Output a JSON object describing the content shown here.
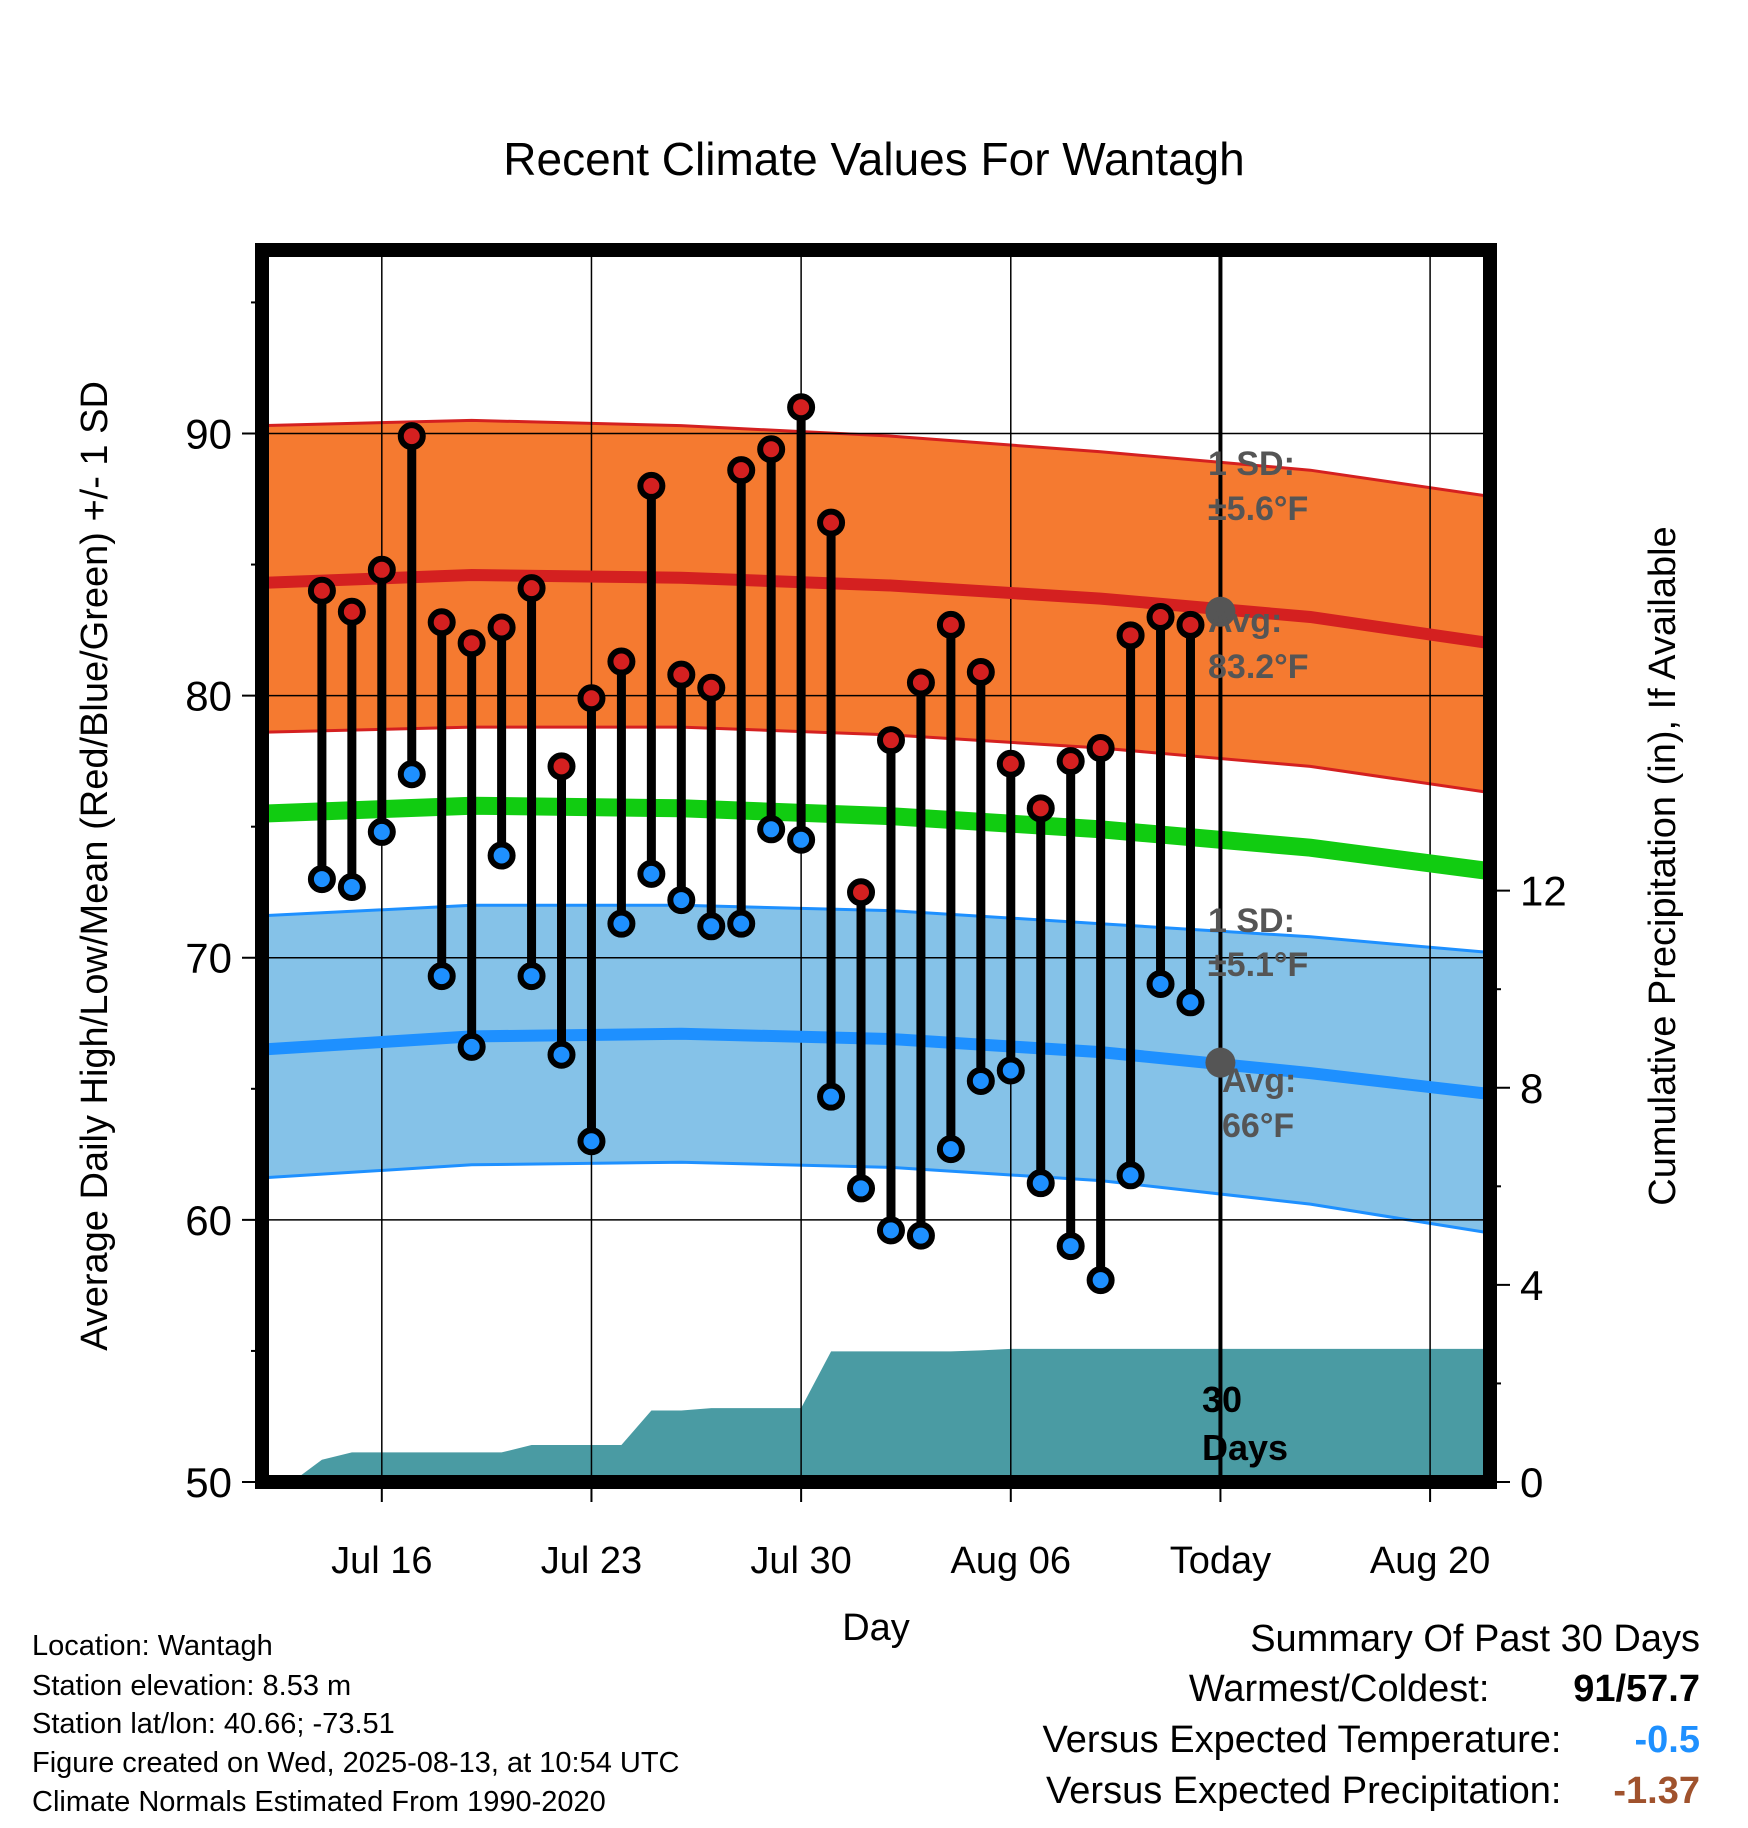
{
  "title": "Recent Climate Values For Wantagh",
  "chart_data": {
    "type": "line",
    "title": "Recent Climate Values For Wantagh",
    "xlabel": "Day",
    "ylabel": "Average Daily High/Low/Mean (Red/Blue/Green) +/- 1 SD",
    "y2label": "Cumulative Precipitation (in), If Available",
    "ylim": [
      50,
      97
    ],
    "y2lim": [
      0,
      25
    ],
    "xlim": [
      "2025-07-12",
      "2025-08-22"
    ],
    "yticks": [
      50,
      60,
      70,
      80,
      90
    ],
    "y2ticks": [
      0,
      4,
      8,
      12
    ],
    "xticks": [
      {
        "date": "2025-07-16",
        "label": "Jul 16"
      },
      {
        "date": "2025-07-23",
        "label": "Jul 23"
      },
      {
        "date": "2025-07-30",
        "label": "Jul 30"
      },
      {
        "date": "2025-08-06",
        "label": "Aug 06"
      },
      {
        "date": "2025-08-13",
        "label": "Today"
      },
      {
        "date": "2025-08-20",
        "label": "Aug 20"
      }
    ],
    "grid": true,
    "today": "2025-08-13",
    "observed": {
      "dates": [
        "2025-07-14",
        "2025-07-15",
        "2025-07-16",
        "2025-07-17",
        "2025-07-18",
        "2025-07-19",
        "2025-07-20",
        "2025-07-21",
        "2025-07-22",
        "2025-07-23",
        "2025-07-24",
        "2025-07-25",
        "2025-07-26",
        "2025-07-27",
        "2025-07-28",
        "2025-07-29",
        "2025-07-30",
        "2025-07-31",
        "2025-08-01",
        "2025-08-02",
        "2025-08-03",
        "2025-08-04",
        "2025-08-05",
        "2025-08-06",
        "2025-08-07",
        "2025-08-08",
        "2025-08-09",
        "2025-08-10",
        "2025-08-11",
        "2025-08-12"
      ],
      "high": [
        84.0,
        83.2,
        84.8,
        89.9,
        82.8,
        82.0,
        82.6,
        84.1,
        77.3,
        79.9,
        81.3,
        88.0,
        80.8,
        80.3,
        88.6,
        89.4,
        91.0,
        86.6,
        72.5,
        78.3,
        80.5,
        82.7,
        80.9,
        77.4,
        75.7,
        77.5,
        78.0,
        82.3,
        83.0,
        82.7
      ],
      "low": [
        73.0,
        72.7,
        74.8,
        77.0,
        69.3,
        66.6,
        73.9,
        69.3,
        66.3,
        63.0,
        71.3,
        73.2,
        72.2,
        71.2,
        71.3,
        74.9,
        74.5,
        64.7,
        61.2,
        59.6,
        59.4,
        62.7,
        65.3,
        65.7,
        61.4,
        59.0,
        57.7,
        61.7,
        69.0,
        68.3
      ]
    },
    "normals": {
      "dates": [
        "2025-07-12",
        "2025-07-19",
        "2025-07-26",
        "2025-08-02",
        "2025-08-09",
        "2025-08-16",
        "2025-08-22"
      ],
      "high_avg": [
        84.3,
        84.6,
        84.5,
        84.2,
        83.7,
        83.0,
        82.0
      ],
      "high_upper": [
        90.3,
        90.5,
        90.3,
        89.9,
        89.3,
        88.6,
        87.6
      ],
      "high_lower": [
        78.6,
        78.8,
        78.8,
        78.5,
        78.0,
        77.3,
        76.3
      ],
      "mean_avg": [
        75.5,
        75.8,
        75.7,
        75.4,
        74.9,
        74.2,
        73.3
      ],
      "low_avg": [
        66.5,
        67.0,
        67.1,
        66.9,
        66.4,
        65.6,
        64.8
      ],
      "low_upper": [
        71.6,
        72.0,
        72.0,
        71.8,
        71.3,
        70.8,
        70.2
      ],
      "low_lower": [
        61.6,
        62.1,
        62.2,
        62.0,
        61.5,
        60.6,
        59.5
      ]
    },
    "precipitation": {
      "dates": [
        "2025-07-12",
        "2025-07-13",
        "2025-07-14",
        "2025-07-15",
        "2025-07-16",
        "2025-07-17",
        "2025-07-18",
        "2025-07-19",
        "2025-07-20",
        "2025-07-21",
        "2025-07-22",
        "2025-07-23",
        "2025-07-24",
        "2025-07-25",
        "2025-07-26",
        "2025-07-27",
        "2025-07-28",
        "2025-07-29",
        "2025-07-30",
        "2025-07-31",
        "2025-08-01",
        "2025-08-02",
        "2025-08-03",
        "2025-08-04",
        "2025-08-05",
        "2025-08-06",
        "2025-08-07",
        "2025-08-08",
        "2025-08-09",
        "2025-08-10",
        "2025-08-11",
        "2025-08-12",
        "2025-08-13",
        "2025-08-22"
      ],
      "cumulative": [
        0,
        0,
        0.45,
        0.6,
        0.6,
        0.6,
        0.6,
        0.6,
        0.6,
        0.75,
        0.75,
        0.75,
        0.75,
        1.45,
        1.45,
        1.5,
        1.5,
        1.5,
        1.5,
        2.65,
        2.65,
        2.65,
        2.65,
        2.65,
        2.67,
        2.7,
        2.7,
        2.7,
        2.7,
        2.7,
        2.7,
        2.7,
        2.7,
        2.7
      ]
    },
    "annotations": {
      "high_sd": "1 SD:",
      "high_sd_value": "±5.6°F",
      "high_avg_label": "Avg:",
      "high_avg_value": "83.2°F",
      "low_sd": "1 SD:",
      "low_sd_value": "±5.1°F",
      "low_avg_label": "Avg:",
      "low_avg_value": "66°F",
      "days_line1": "30",
      "days_line2": "Days"
    },
    "colors": {
      "high_band": "#f57a30",
      "high_line": "#d42020",
      "low_band": "#85c2e8",
      "low_line": "#1e90ff",
      "mean_line": "#11cc11",
      "precip": "#4a9ba3",
      "high_dot": "#d42020",
      "low_dot": "#1e90ff",
      "annotation": "#555555"
    }
  },
  "footer": {
    "location": "Location: Wantagh",
    "elevation": "Station elevation: 8.53 m",
    "latlon": "Station lat/lon: 40.66; -73.51",
    "created": "Figure created on Wed, 2025-08-13, at 10:54 UTC",
    "normals": "Climate Normals Estimated From 1990-2020"
  },
  "summary": {
    "heading": "Summary Of Past 30 Days",
    "warmest_label": "Warmest/Coldest:",
    "warmest_value": "91",
    "slash": "/",
    "coldest_value": "57.7",
    "temp_label": "Versus Expected Temperature:",
    "temp_value": "-0.5",
    "temp_color": "#1e90ff",
    "precip_label": "Versus Expected Precipitation:",
    "precip_value": "-1.37",
    "precip_color": "#a0522d"
  }
}
